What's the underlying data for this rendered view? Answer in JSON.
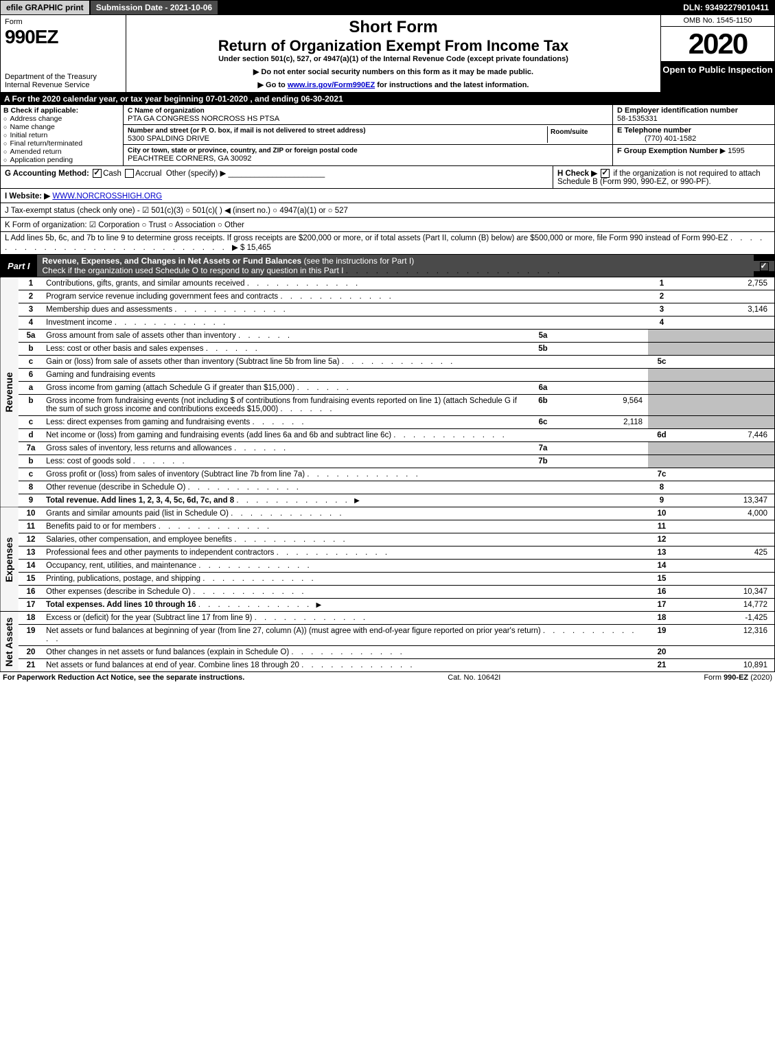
{
  "colors": {
    "black": "#000000",
    "white": "#ffffff",
    "darkgray": "#4a4a4a",
    "lightgray": "#d0d0d0",
    "shaded": "#c0c0c0",
    "link": "#0000cc"
  },
  "topbar": {
    "efile": "efile GRAPHIC print",
    "submission": "Submission Date - 2021-10-06",
    "dln": "DLN: 93492279010411"
  },
  "header": {
    "form_label": "Form",
    "form_number": "990EZ",
    "dept1": "Department of the Treasury",
    "dept2": "Internal Revenue Service",
    "short_form": "Short Form",
    "main_title": "Return of Organization Exempt From Income Tax",
    "subtitle": "Under section 501(c), 527, or 4947(a)(1) of the Internal Revenue Code (except private foundations)",
    "warn": "▶ Do not enter social security numbers on this form as it may be made public.",
    "goto_pre": "▶ Go to ",
    "goto_link": "www.irs.gov/Form990EZ",
    "goto_post": " for instructions and the latest information.",
    "omb": "OMB No. 1545-1150",
    "year": "2020",
    "inspection": "Open to Public Inspection"
  },
  "line_a": "A For the 2020 calendar year, or tax year beginning 07-01-2020 , and ending 06-30-2021",
  "section_b": {
    "header": "B Check if applicable:",
    "items": [
      "Address change",
      "Name change",
      "Initial return",
      "Final return/terminated",
      "Amended return",
      "Application pending"
    ]
  },
  "section_c": {
    "name_label": "C Name of organization",
    "name": "PTA GA CONGRESS NORCROSS HS PTSA",
    "street_label": "Number and street (or P. O. box, if mail is not delivered to street address)",
    "street": "5300 SPALDING DRIVE",
    "room_label": "Room/suite",
    "city_label": "City or town, state or province, country, and ZIP or foreign postal code",
    "city": "PEACHTREE CORNERS, GA  30092"
  },
  "section_d": {
    "ein_label": "D Employer identification number",
    "ein": "58-1535331",
    "tel_label": "E Telephone number",
    "tel": "(770) 401-1582",
    "group_label": "F Group Exemption Number",
    "group": "▶ 1595"
  },
  "line_g": {
    "label": "G Accounting Method:",
    "cash": "Cash",
    "accrual": "Accrual",
    "other": "Other (specify) ▶"
  },
  "line_h": {
    "pre": "H Check ▶",
    "post": "if the organization is not required to attach Schedule B (Form 990, 990-EZ, or 990-PF)."
  },
  "line_i": {
    "label": "I Website: ▶",
    "value": "WWW.NORCROSSHIGH.ORG"
  },
  "line_j": "J Tax-exempt status (check only one) - ☑ 501(c)(3) ○ 501(c)(  ) ◀ (insert no.) ○ 4947(a)(1) or ○ 527",
  "line_k": "K Form of organization: ☑ Corporation  ○ Trust  ○ Association  ○ Other",
  "line_l": {
    "text": "L Add lines 5b, 6c, and 7b to line 9 to determine gross receipts. If gross receipts are $200,000 or more, or if total assets (Part II, column (B) below) are $500,000 or more, file Form 990 instead of Form 990-EZ",
    "amount": "▶ $ 15,465"
  },
  "part1": {
    "label": "Part I",
    "title_bold": "Revenue, Expenses, and Changes in Net Assets or Fund Balances",
    "title_rest": " (see the instructions for Part I)",
    "check_line": "Check if the organization used Schedule O to respond to any question in this Part I"
  },
  "vert_labels": {
    "revenue": "Revenue",
    "expenses": "Expenses",
    "netassets": "Net Assets"
  },
  "revenue_lines": [
    {
      "n": "1",
      "desc": "Contributions, gifts, grants, and similar amounts received",
      "box": "1",
      "val": "2,755"
    },
    {
      "n": "2",
      "desc": "Program service revenue including government fees and contracts",
      "box": "2",
      "val": ""
    },
    {
      "n": "3",
      "desc": "Membership dues and assessments",
      "box": "3",
      "val": "3,146"
    },
    {
      "n": "4",
      "desc": "Investment income",
      "box": "4",
      "val": ""
    },
    {
      "n": "5a",
      "desc": "Gross amount from sale of assets other than inventory",
      "sub": "5a",
      "subval": ""
    },
    {
      "n": "b",
      "desc": "Less: cost or other basis and sales expenses",
      "sub": "5b",
      "subval": ""
    },
    {
      "n": "c",
      "desc": "Gain or (loss) from sale of assets other than inventory (Subtract line 5b from line 5a)",
      "box": "5c",
      "val": ""
    },
    {
      "n": "6",
      "desc": "Gaming and fundraising events"
    },
    {
      "n": "a",
      "desc": "Gross income from gaming (attach Schedule G if greater than $15,000)",
      "sub": "6a",
      "subval": ""
    },
    {
      "n": "b",
      "desc": "Gross income from fundraising events (not including $                 of contributions from fundraising events reported on line 1) (attach Schedule G if the sum of such gross income and contributions exceeds $15,000)",
      "sub": "6b",
      "subval": "9,564"
    },
    {
      "n": "c",
      "desc": "Less: direct expenses from gaming and fundraising events",
      "sub": "6c",
      "subval": "2,118"
    },
    {
      "n": "d",
      "desc": "Net income or (loss) from gaming and fundraising events (add lines 6a and 6b and subtract line 6c)",
      "box": "6d",
      "val": "7,446"
    },
    {
      "n": "7a",
      "desc": "Gross sales of inventory, less returns and allowances",
      "sub": "7a",
      "subval": ""
    },
    {
      "n": "b",
      "desc": "Less: cost of goods sold",
      "sub": "7b",
      "subval": ""
    },
    {
      "n": "c",
      "desc": "Gross profit or (loss) from sales of inventory (Subtract line 7b from line 7a)",
      "box": "7c",
      "val": ""
    },
    {
      "n": "8",
      "desc": "Other revenue (describe in Schedule O)",
      "box": "8",
      "val": ""
    },
    {
      "n": "9",
      "desc": "Total revenue. Add lines 1, 2, 3, 4, 5c, 6d, 7c, and 8",
      "box": "9",
      "val": "13,347",
      "arrow": true,
      "bold": true
    }
  ],
  "expense_lines": [
    {
      "n": "10",
      "desc": "Grants and similar amounts paid (list in Schedule O)",
      "box": "10",
      "val": "4,000"
    },
    {
      "n": "11",
      "desc": "Benefits paid to or for members",
      "box": "11",
      "val": ""
    },
    {
      "n": "12",
      "desc": "Salaries, other compensation, and employee benefits",
      "box": "12",
      "val": ""
    },
    {
      "n": "13",
      "desc": "Professional fees and other payments to independent contractors",
      "box": "13",
      "val": "425"
    },
    {
      "n": "14",
      "desc": "Occupancy, rent, utilities, and maintenance",
      "box": "14",
      "val": ""
    },
    {
      "n": "15",
      "desc": "Printing, publications, postage, and shipping",
      "box": "15",
      "val": ""
    },
    {
      "n": "16",
      "desc": "Other expenses (describe in Schedule O)",
      "box": "16",
      "val": "10,347"
    },
    {
      "n": "17",
      "desc": "Total expenses. Add lines 10 through 16",
      "box": "17",
      "val": "14,772",
      "arrow": true,
      "bold": true
    }
  ],
  "netasset_lines": [
    {
      "n": "18",
      "desc": "Excess or (deficit) for the year (Subtract line 17 from line 9)",
      "box": "18",
      "val": "-1,425"
    },
    {
      "n": "19",
      "desc": "Net assets or fund balances at beginning of year (from line 27, column (A)) (must agree with end-of-year figure reported on prior year's return)",
      "box": "19",
      "val": "12,316"
    },
    {
      "n": "20",
      "desc": "Other changes in net assets or fund balances (explain in Schedule O)",
      "box": "20",
      "val": ""
    },
    {
      "n": "21",
      "desc": "Net assets or fund balances at end of year. Combine lines 18 through 20",
      "box": "21",
      "val": "10,891"
    }
  ],
  "footer": {
    "left": "For Paperwork Reduction Act Notice, see the separate instructions.",
    "mid": "Cat. No. 10642I",
    "right": "Form 990-EZ (2020)"
  }
}
